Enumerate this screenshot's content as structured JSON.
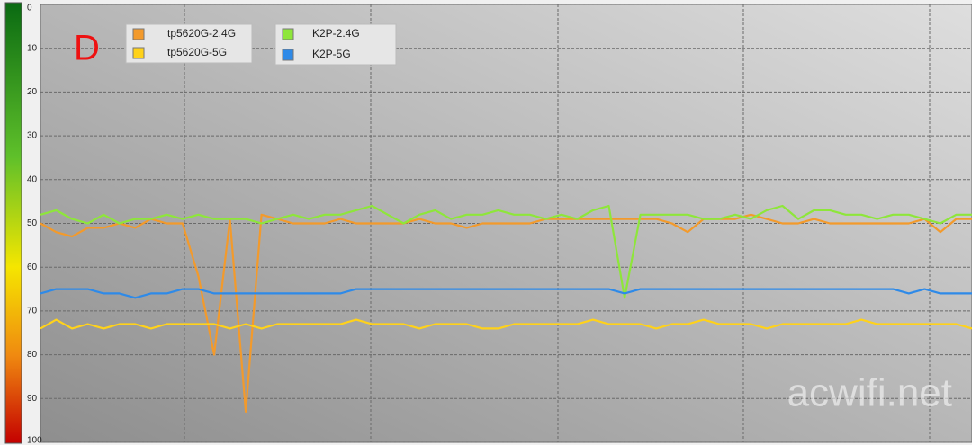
{
  "chart_data": {
    "type": "line",
    "annotations": [
      "D",
      "acwifi.net"
    ],
    "categories": [
      null,
      null,
      null,
      null,
      null,
      null,
      null,
      null,
      null,
      null,
      null,
      null,
      null,
      null,
      null,
      null,
      null,
      null,
      null,
      null,
      null,
      null,
      null,
      null,
      null,
      null,
      null,
      null,
      null,
      null,
      null,
      null,
      null,
      null,
      null,
      null,
      null,
      null,
      null,
      null,
      null,
      null,
      null,
      null,
      null,
      null,
      null,
      null,
      null,
      null,
      null,
      null,
      null,
      null,
      null,
      null,
      null,
      null,
      null,
      null
    ],
    "series": [
      {
        "name": "tp5620G-2.4G",
        "color": "#f39a2b",
        "values": [
          50,
          52,
          53,
          51,
          51,
          50,
          51,
          49,
          50,
          50,
          62,
          80,
          49,
          93,
          48,
          49,
          50,
          50,
          50,
          49,
          50,
          50,
          50,
          50,
          49,
          50,
          50,
          51,
          50,
          50,
          50,
          50,
          49,
          49,
          49,
          49,
          49,
          49,
          49,
          49,
          50,
          52,
          49,
          49,
          49,
          48,
          49,
          50,
          50,
          49,
          50,
          50,
          50,
          50,
          50,
          50,
          49,
          52,
          49,
          49
        ]
      },
      {
        "name": "tp5620G-5G",
        "color": "#ffd21a",
        "values": [
          74,
          72,
          74,
          73,
          74,
          73,
          73,
          74,
          73,
          73,
          73,
          73,
          74,
          73,
          74,
          73,
          73,
          73,
          73,
          73,
          72,
          73,
          73,
          73,
          74,
          73,
          73,
          73,
          74,
          74,
          73,
          73,
          73,
          73,
          73,
          72,
          73,
          73,
          73,
          74,
          73,
          73,
          72,
          73,
          73,
          73,
          74,
          73,
          73,
          73,
          73,
          73,
          72,
          73,
          73,
          73,
          73,
          73,
          73,
          74
        ]
      },
      {
        "name": "K2P-2.4G",
        "color": "#8ee63a",
        "values": [
          48,
          47,
          49,
          50,
          48,
          50,
          49,
          49,
          48,
          49,
          48,
          49,
          49,
          49,
          50,
          49,
          48,
          49,
          48,
          48,
          47,
          46,
          48,
          50,
          48,
          47,
          49,
          48,
          48,
          47,
          48,
          48,
          49,
          48,
          49,
          47,
          46,
          67,
          48,
          48,
          48,
          48,
          49,
          49,
          48,
          49,
          47,
          46,
          49,
          47,
          47,
          48,
          48,
          49,
          48,
          48,
          49,
          50,
          48,
          48
        ]
      },
      {
        "name": "K2P-5G",
        "color": "#2e8ae8",
        "values": [
          66,
          65,
          65,
          65,
          66,
          66,
          67,
          66,
          66,
          65,
          65,
          66,
          66,
          66,
          66,
          66,
          66,
          66,
          66,
          66,
          65,
          65,
          65,
          65,
          65,
          65,
          65,
          65,
          65,
          65,
          65,
          65,
          65,
          65,
          65,
          65,
          65,
          66,
          65,
          65,
          65,
          65,
          65,
          65,
          65,
          65,
          65,
          65,
          65,
          65,
          65,
          65,
          65,
          65,
          65,
          66,
          65,
          66,
          66,
          66
        ]
      }
    ],
    "ylim": [
      100,
      0
    ],
    "yticks": [
      0,
      10,
      20,
      30,
      40,
      50,
      60,
      70,
      80,
      90,
      100
    ],
    "grid": true
  }
}
